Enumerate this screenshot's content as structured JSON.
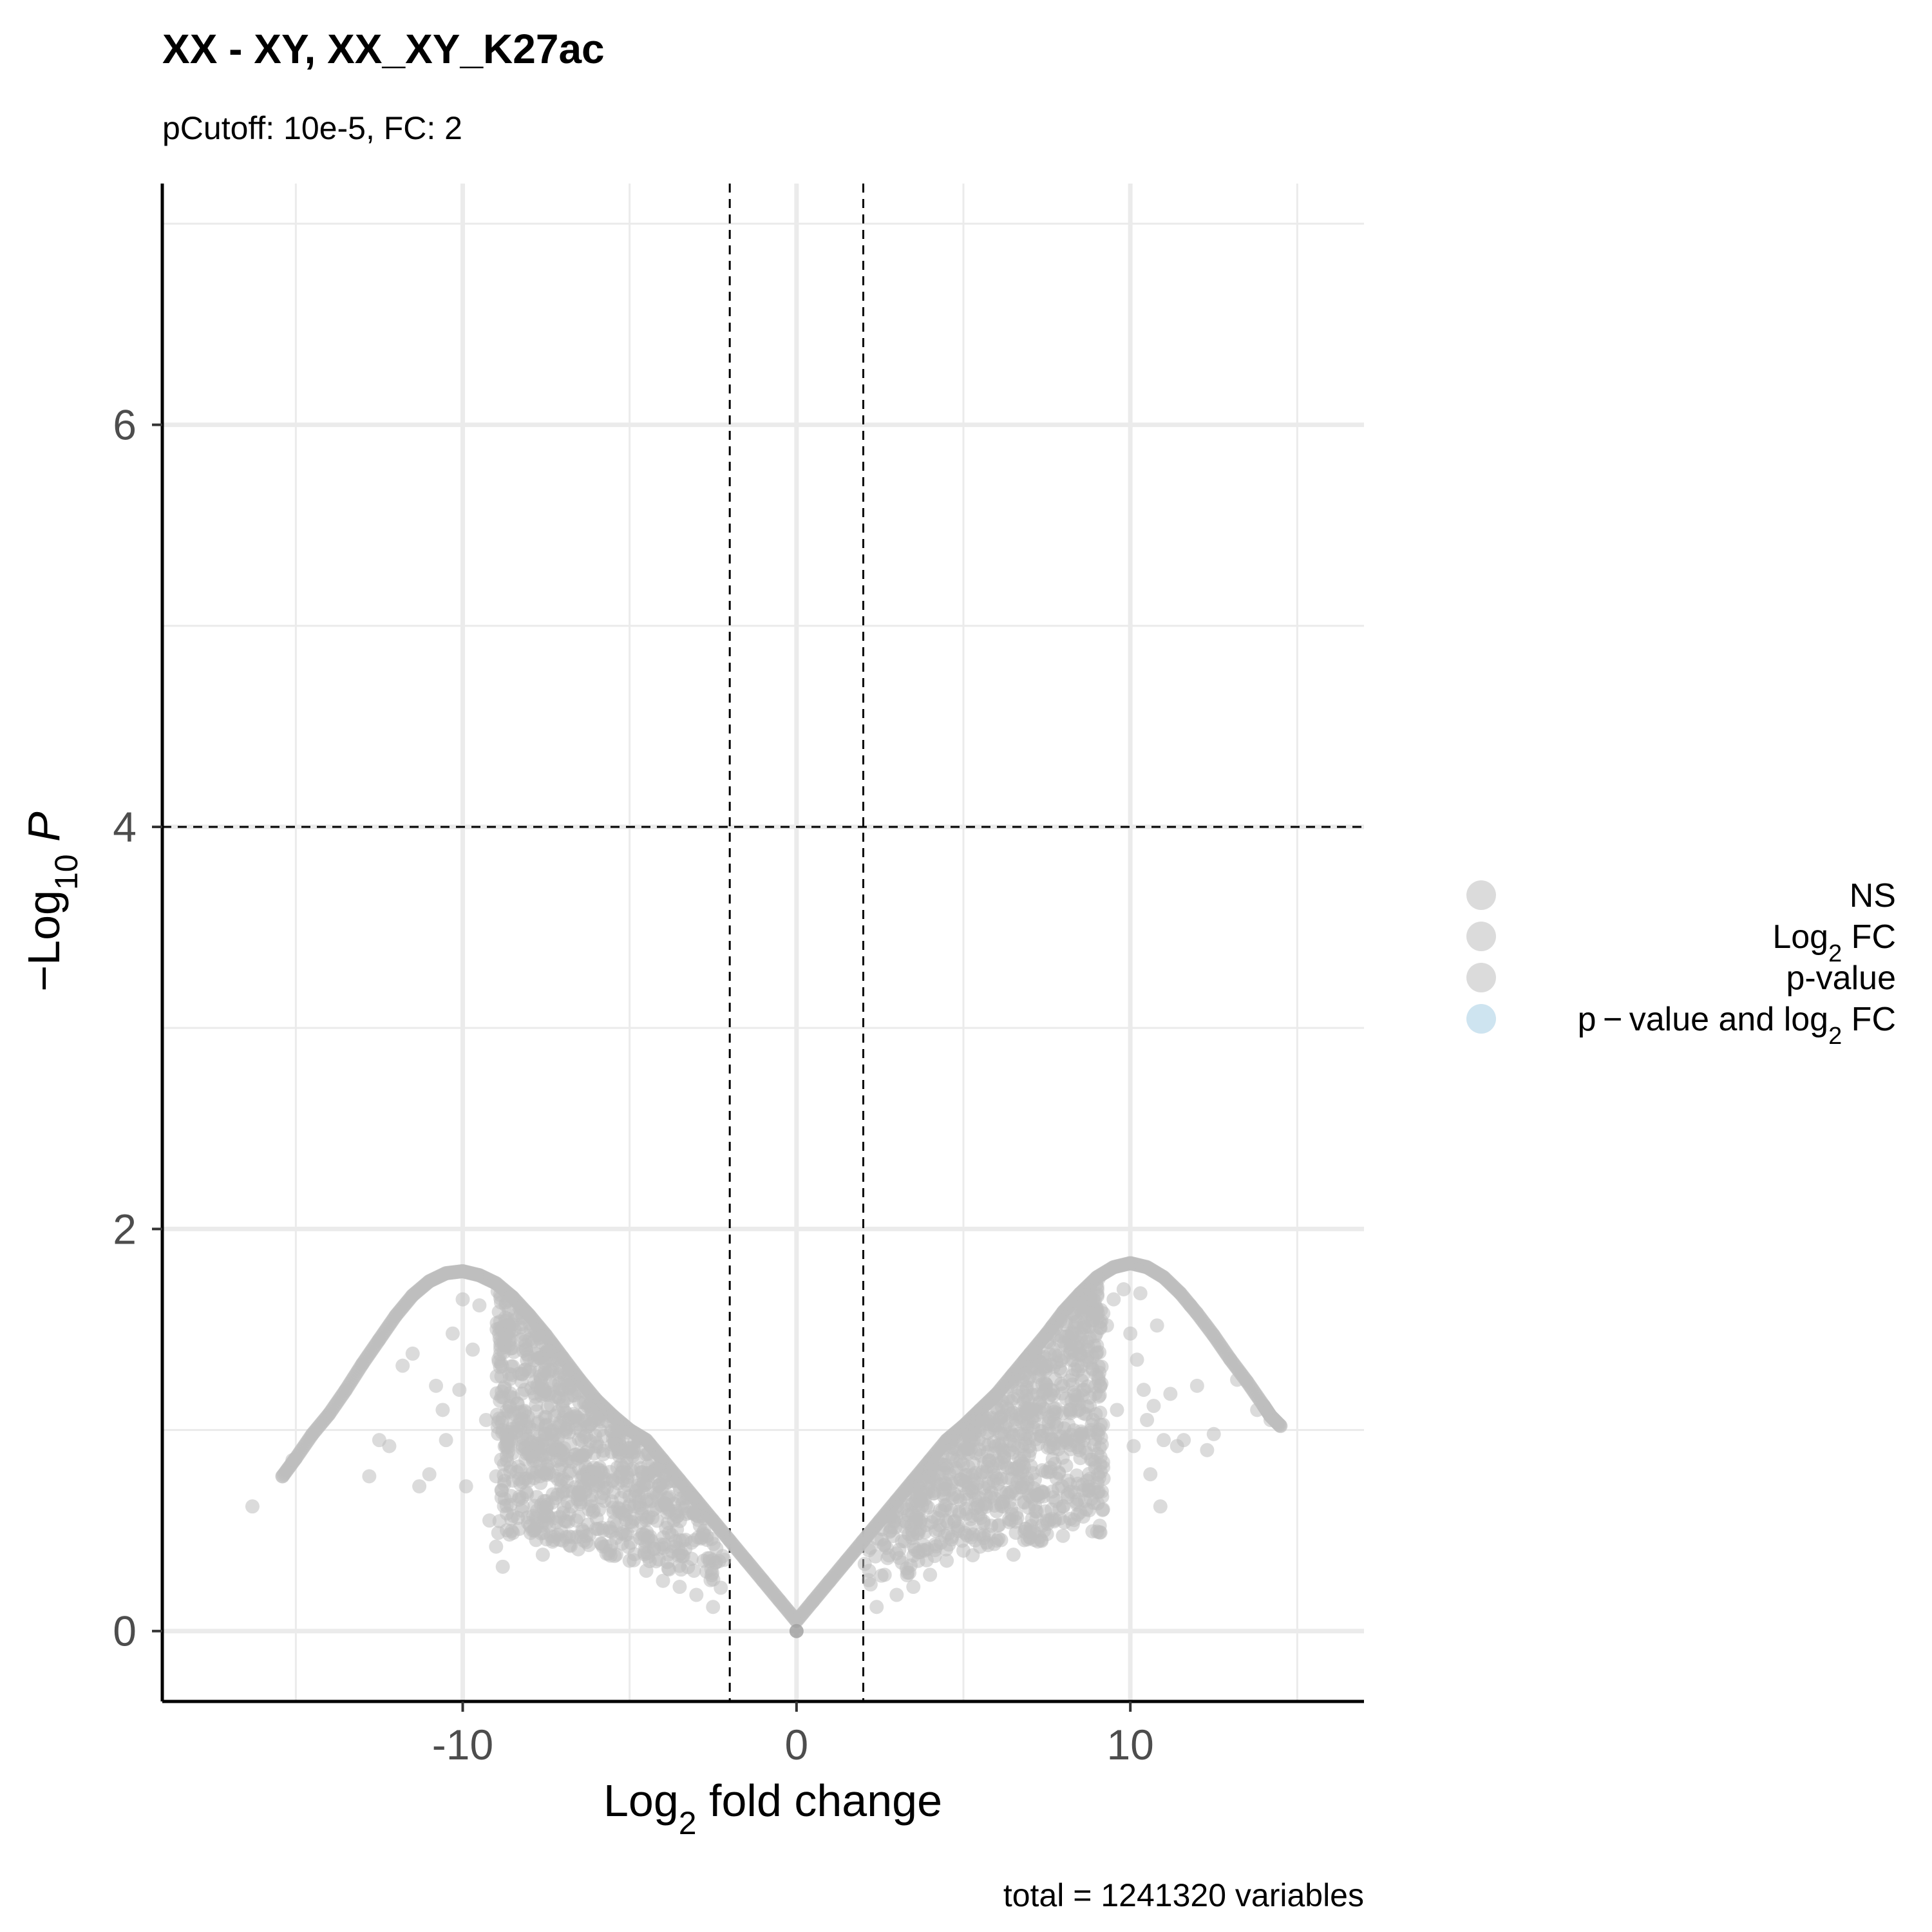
{
  "chart_data": {
    "type": "scatter",
    "title": "XX - XY, XX_XY_K27ac",
    "subtitle": "pCutoff: 10e-5, FC: 2",
    "xlabel": {
      "main": "Log",
      "sub": "2",
      "rest": " fold change"
    },
    "ylabel": {
      "prefix": "−Log",
      "sub": "10",
      "italic": " P"
    },
    "caption": "total = 1241320 variables",
    "xlim": [
      -19,
      17
    ],
    "ylim": [
      -0.35,
      7.2
    ],
    "x_ticks": [
      -10,
      0,
      10
    ],
    "x_tick_labels": [
      "-10",
      "0",
      "10"
    ],
    "y_ticks": [
      0,
      2,
      4,
      6
    ],
    "y_tick_labels": [
      "0",
      "2",
      "4",
      "6"
    ],
    "x_minor_gridlines": [
      -15,
      -5,
      5,
      15
    ],
    "y_minor_gridlines": [
      1,
      3,
      5,
      7
    ],
    "grid": true,
    "cutoff_lines": {
      "vertical": [
        -2,
        2
      ],
      "horizontal": 4
    },
    "point_color": "#bdbdbd",
    "point_opacity": 0.55,
    "envelope_curve": [
      [
        0,
        0.05
      ],
      [
        -0.5,
        0.15
      ],
      [
        -1,
        0.25
      ],
      [
        -1.5,
        0.35
      ],
      [
        -2,
        0.45
      ],
      [
        -2.5,
        0.55
      ],
      [
        -3,
        0.65
      ],
      [
        -3.5,
        0.75
      ],
      [
        -4,
        0.85
      ],
      [
        -4.5,
        0.95
      ],
      [
        -5,
        1.0
      ],
      [
        -5.5,
        1.07
      ],
      [
        -6,
        1.15
      ],
      [
        -6.5,
        1.25
      ],
      [
        -7,
        1.36
      ],
      [
        -7.5,
        1.47
      ],
      [
        -8,
        1.57
      ],
      [
        -8.5,
        1.66
      ],
      [
        -9,
        1.73
      ],
      [
        -9.5,
        1.77
      ],
      [
        -10,
        1.79
      ],
      [
        -10.5,
        1.78
      ],
      [
        -11,
        1.74
      ],
      [
        -11.5,
        1.67
      ],
      [
        -12,
        1.57
      ],
      [
        -12.5,
        1.45
      ],
      [
        -13,
        1.33
      ],
      [
        -13.5,
        1.2
      ],
      [
        -14,
        1.08
      ],
      [
        -14.5,
        0.98
      ],
      [
        -15,
        0.86
      ],
      [
        -15.4,
        0.77
      ],
      [
        0.5,
        0.15
      ],
      [
        1,
        0.25
      ],
      [
        1.5,
        0.35
      ],
      [
        2,
        0.45
      ],
      [
        2.5,
        0.55
      ],
      [
        3,
        0.65
      ],
      [
        3.5,
        0.75
      ],
      [
        4,
        0.85
      ],
      [
        4.5,
        0.95
      ],
      [
        5,
        1.02
      ],
      [
        5.5,
        1.1
      ],
      [
        6,
        1.18
      ],
      [
        6.5,
        1.28
      ],
      [
        7,
        1.38
      ],
      [
        7.5,
        1.48
      ],
      [
        8,
        1.59
      ],
      [
        8.5,
        1.68
      ],
      [
        9,
        1.76
      ],
      [
        9.5,
        1.81
      ],
      [
        10,
        1.83
      ],
      [
        10.5,
        1.81
      ],
      [
        11,
        1.76
      ],
      [
        11.5,
        1.68
      ],
      [
        12,
        1.58
      ],
      [
        12.5,
        1.47
      ],
      [
        13,
        1.35
      ],
      [
        13.5,
        1.24
      ],
      [
        14,
        1.12
      ],
      [
        14.2,
        1.07
      ],
      [
        14.5,
        1.02
      ]
    ],
    "scattered_points": [
      [
        -16.3,
        0.62
      ],
      [
        -15.4,
        0.77
      ],
      [
        -15.1,
        0.85
      ],
      [
        -12.8,
        0.77
      ],
      [
        -12.5,
        0.95
      ],
      [
        -12.2,
        0.92
      ],
      [
        -11.8,
        1.32
      ],
      [
        -11.5,
        1.38
      ],
      [
        -11.3,
        0.72
      ],
      [
        -11.0,
        0.78
      ],
      [
        -10.8,
        1.22
      ],
      [
        -10.6,
        1.1
      ],
      [
        -10.5,
        0.95
      ],
      [
        -10.3,
        1.48
      ],
      [
        -10.1,
        1.2
      ],
      [
        -10.0,
        1.65
      ],
      [
        -9.9,
        0.72
      ],
      [
        -9.7,
        1.4
      ],
      [
        -9.5,
        1.62
      ],
      [
        -9.3,
        1.05
      ],
      [
        -9.2,
        0.55
      ],
      [
        -9.0,
        0.42
      ],
      [
        -8.8,
        0.32
      ],
      [
        -8.6,
        0.48
      ],
      [
        -8.4,
        1.55
      ],
      [
        -8.2,
        0.62
      ],
      [
        -8.0,
        1.45
      ],
      [
        -7.9,
        0.5
      ],
      [
        -7.6,
        0.38
      ],
      [
        -7.3,
        0.68
      ],
      [
        -7.0,
        0.45
      ],
      [
        -6.6,
        0.55
      ],
      [
        -6.2,
        0.48
      ],
      [
        -5.8,
        0.42
      ],
      [
        -5.4,
        0.38
      ],
      [
        -5.0,
        0.35
      ],
      [
        -4.5,
        0.3
      ],
      [
        -4.0,
        0.25
      ],
      [
        -3.5,
        0.22
      ],
      [
        -3.0,
        0.18
      ],
      [
        -2.5,
        0.12
      ],
      [
        2.4,
        0.12
      ],
      [
        3.0,
        0.18
      ],
      [
        3.5,
        0.22
      ],
      [
        4.0,
        0.28
      ],
      [
        4.5,
        0.35
      ],
      [
        5.0,
        0.4
      ],
      [
        5.5,
        0.42
      ],
      [
        6.0,
        0.45
      ],
      [
        6.5,
        0.38
      ],
      [
        7.0,
        0.5
      ],
      [
        7.5,
        0.55
      ],
      [
        8.0,
        0.62
      ],
      [
        8.3,
        1.48
      ],
      [
        8.5,
        1.38
      ],
      [
        8.6,
        0.7
      ],
      [
        8.8,
        1.58
      ],
      [
        9.0,
        1.42
      ],
      [
        9.1,
        1.22
      ],
      [
        9.3,
        1.52
      ],
      [
        9.5,
        1.65
      ],
      [
        9.6,
        1.1
      ],
      [
        9.8,
        1.7
      ],
      [
        10.0,
        1.48
      ],
      [
        10.1,
        0.92
      ],
      [
        10.2,
        1.35
      ],
      [
        10.3,
        1.68
      ],
      [
        10.4,
        1.2
      ],
      [
        10.5,
        1.05
      ],
      [
        10.6,
        0.78
      ],
      [
        10.7,
        1.12
      ],
      [
        10.8,
        1.52
      ],
      [
        10.9,
        0.62
      ],
      [
        11.0,
        0.95
      ],
      [
        11.2,
        1.18
      ],
      [
        11.4,
        0.92
      ],
      [
        11.6,
        0.95
      ],
      [
        11.8,
        1.62
      ],
      [
        12.0,
        1.22
      ],
      [
        12.3,
        0.9
      ],
      [
        12.5,
        0.98
      ],
      [
        13.2,
        1.25
      ],
      [
        13.8,
        1.1
      ],
      [
        14.2,
        1.05
      ],
      [
        14.5,
        1.02
      ]
    ],
    "dense_clouds": [
      {
        "x_range": [
          -9.0,
          -2.0
        ],
        "peak_x": -7.2,
        "n": 900
      },
      {
        "x_range": [
          2.0,
          9.2
        ],
        "peak_x": 7.6,
        "n": 900
      }
    ],
    "legend": {
      "placement": "right",
      "items": [
        {
          "label_parts": [
            [
              "NS",
              ""
            ]
          ],
          "color": "#bdbdbd"
        },
        {
          "label_parts": [
            [
              "Log",
              ""
            ],
            [
              "2",
              "sub"
            ],
            [
              " FC",
              ""
            ]
          ],
          "color": "#bdbdbd"
        },
        {
          "label_parts": [
            [
              "p-value",
              ""
            ]
          ],
          "color": "#bdbdbd"
        },
        {
          "label_parts": [
            [
              "p − value and log",
              ""
            ],
            [
              "2",
              "sub"
            ],
            [
              " FC",
              ""
            ]
          ],
          "color": "#a6cee3"
        }
      ]
    }
  }
}
